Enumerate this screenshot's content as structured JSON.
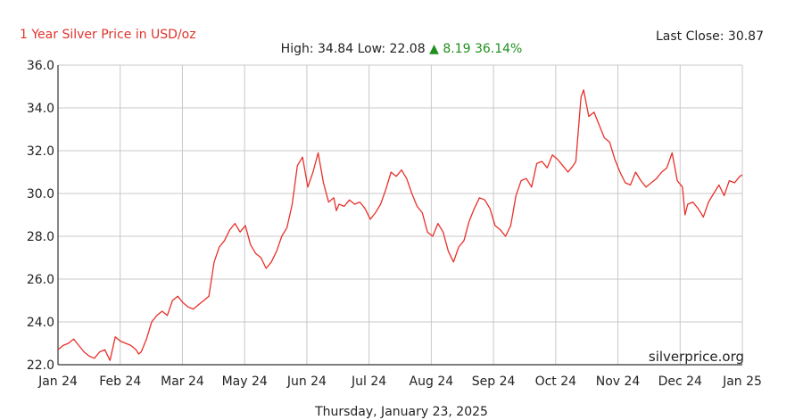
{
  "header": {
    "title": "1 Year Silver Price in USD/oz",
    "last_close_label": "Last Close: 30.87",
    "high_label": "High: 34.84",
    "low_label": "Low: 22.08",
    "change_arrow": "▲",
    "change_value": "8.19",
    "change_percent": "36.14%"
  },
  "footer": {
    "date": "Thursday, January 23, 2025",
    "watermark": "silverprice.org"
  },
  "colors": {
    "line": "#e8302a",
    "title": "#e0332b",
    "change": "#1f8f1f",
    "grid": "#c8c8c8"
  },
  "chart_data": {
    "type": "line",
    "title": "1 Year Silver Price in USD/oz",
    "xlabel": "",
    "ylabel": "",
    "ylim": [
      22,
      36
    ],
    "xlim": [
      0,
      12.7
    ],
    "grid": true,
    "y_ticks": [
      "22.0",
      "24.0",
      "26.0",
      "28.0",
      "30.0",
      "32.0",
      "34.0",
      "36.0"
    ],
    "x_ticks": [
      "Jan 24",
      "Feb 24",
      "Mar 24",
      "May 24",
      "Jun 24",
      "Jul 24",
      "Aug 24",
      "Sep 24",
      "Oct 24",
      "Nov 24",
      "Dec 24",
      "Jan 25"
    ],
    "series": [
      {
        "values": [
          [
            0.0,
            22.7
          ],
          [
            0.1,
            22.9
          ],
          [
            0.2,
            23.0
          ],
          [
            0.3,
            23.2
          ],
          [
            0.4,
            22.9
          ],
          [
            0.5,
            22.6
          ],
          [
            0.6,
            22.4
          ],
          [
            0.7,
            22.3
          ],
          [
            0.8,
            22.6
          ],
          [
            0.9,
            22.7
          ],
          [
            1.0,
            22.2
          ],
          [
            1.1,
            23.3
          ],
          [
            1.2,
            23.1
          ],
          [
            1.3,
            23.0
          ],
          [
            1.4,
            22.9
          ],
          [
            1.5,
            22.7
          ],
          [
            1.55,
            22.5
          ],
          [
            1.6,
            22.6
          ],
          [
            1.7,
            23.2
          ],
          [
            1.8,
            24.0
          ],
          [
            1.9,
            24.3
          ],
          [
            2.0,
            24.5
          ],
          [
            2.1,
            24.3
          ],
          [
            2.2,
            25.0
          ],
          [
            2.3,
            25.2
          ],
          [
            2.4,
            24.9
          ],
          [
            2.5,
            24.7
          ],
          [
            2.6,
            24.6
          ],
          [
            2.7,
            24.8
          ],
          [
            2.8,
            25.0
          ],
          [
            2.9,
            25.2
          ],
          [
            3.0,
            26.8
          ],
          [
            3.1,
            27.5
          ],
          [
            3.2,
            27.8
          ],
          [
            3.3,
            28.3
          ],
          [
            3.4,
            28.6
          ],
          [
            3.5,
            28.2
          ],
          [
            3.6,
            28.5
          ],
          [
            3.7,
            27.6
          ],
          [
            3.8,
            27.2
          ],
          [
            3.9,
            27.0
          ],
          [
            4.0,
            26.5
          ],
          [
            4.1,
            26.8
          ],
          [
            4.2,
            27.3
          ],
          [
            4.3,
            28.0
          ],
          [
            4.4,
            28.4
          ],
          [
            4.5,
            29.5
          ],
          [
            4.6,
            31.3
          ],
          [
            4.7,
            31.7
          ],
          [
            4.8,
            30.3
          ],
          [
            4.9,
            31.0
          ],
          [
            5.0,
            31.9
          ],
          [
            5.1,
            30.5
          ],
          [
            5.2,
            29.6
          ],
          [
            5.3,
            29.8
          ],
          [
            5.35,
            29.2
          ],
          [
            5.4,
            29.5
          ],
          [
            5.5,
            29.4
          ],
          [
            5.6,
            29.7
          ],
          [
            5.7,
            29.5
          ],
          [
            5.8,
            29.6
          ],
          [
            5.9,
            29.3
          ],
          [
            6.0,
            28.8
          ],
          [
            6.1,
            29.1
          ],
          [
            6.2,
            29.5
          ],
          [
            6.3,
            30.2
          ],
          [
            6.4,
            31.0
          ],
          [
            6.5,
            30.8
          ],
          [
            6.6,
            31.1
          ],
          [
            6.7,
            30.7
          ],
          [
            6.8,
            30.0
          ],
          [
            6.9,
            29.4
          ],
          [
            7.0,
            29.1
          ],
          [
            7.1,
            28.2
          ],
          [
            7.2,
            28.0
          ],
          [
            7.3,
            28.6
          ],
          [
            7.4,
            28.2
          ],
          [
            7.5,
            27.3
          ],
          [
            7.6,
            26.8
          ],
          [
            7.7,
            27.5
          ],
          [
            7.8,
            27.8
          ],
          [
            7.9,
            28.7
          ],
          [
            8.0,
            29.3
          ],
          [
            8.1,
            29.8
          ],
          [
            8.2,
            29.7
          ],
          [
            8.3,
            29.3
          ],
          [
            8.4,
            28.5
          ],
          [
            8.5,
            28.3
          ],
          [
            8.6,
            28.0
          ],
          [
            8.7,
            28.5
          ],
          [
            8.8,
            29.9
          ],
          [
            8.9,
            30.6
          ],
          [
            9.0,
            30.7
          ],
          [
            9.1,
            30.3
          ],
          [
            9.2,
            31.4
          ],
          [
            9.3,
            31.5
          ],
          [
            9.4,
            31.2
          ],
          [
            9.5,
            31.8
          ],
          [
            9.6,
            31.6
          ],
          [
            9.7,
            31.3
          ],
          [
            9.8,
            31.0
          ],
          [
            9.9,
            31.3
          ],
          [
            9.95,
            31.5
          ],
          [
            10.0,
            33.0
          ],
          [
            10.05,
            34.5
          ],
          [
            10.1,
            34.84
          ],
          [
            10.2,
            33.6
          ],
          [
            10.3,
            33.8
          ],
          [
            10.4,
            33.2
          ],
          [
            10.5,
            32.6
          ],
          [
            10.6,
            32.4
          ],
          [
            10.7,
            31.6
          ],
          [
            10.8,
            31.0
          ],
          [
            10.9,
            30.5
          ],
          [
            11.0,
            30.4
          ],
          [
            11.1,
            31.0
          ],
          [
            11.2,
            30.6
          ],
          [
            11.3,
            30.3
          ],
          [
            11.4,
            30.5
          ],
          [
            11.5,
            30.7
          ],
          [
            11.6,
            31.0
          ],
          [
            11.7,
            31.2
          ],
          [
            11.8,
            31.9
          ],
          [
            11.9,
            30.6
          ],
          [
            12.0,
            30.3
          ],
          [
            12.05,
            29.0
          ],
          [
            12.1,
            29.5
          ],
          [
            12.2,
            29.6
          ],
          [
            12.3,
            29.3
          ],
          [
            12.4,
            28.9
          ],
          [
            12.5,
            29.6
          ],
          [
            12.6,
            30.0
          ],
          [
            12.7,
            30.4
          ],
          [
            12.8,
            29.9
          ],
          [
            12.9,
            30.6
          ],
          [
            13.0,
            30.5
          ],
          [
            13.1,
            30.8
          ],
          [
            13.15,
            30.87
          ]
        ]
      }
    ]
  }
}
